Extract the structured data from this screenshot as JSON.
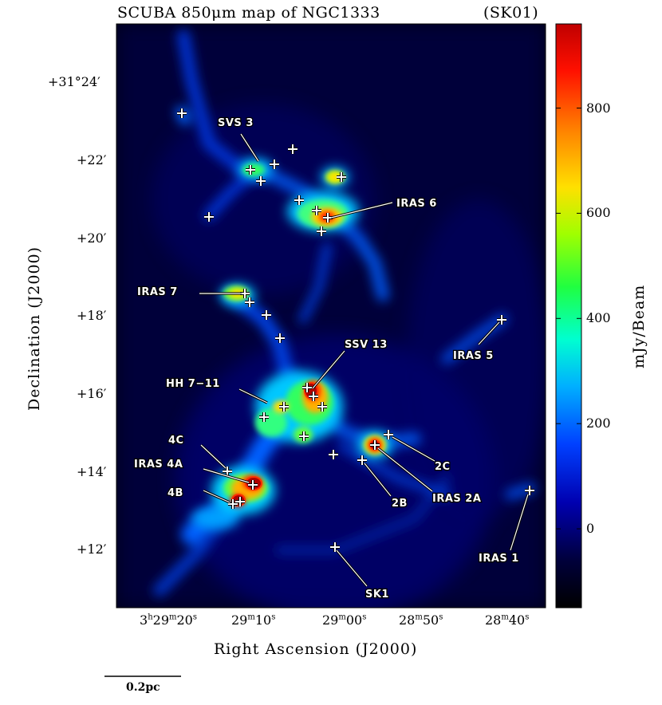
{
  "chart_data": {
    "type": "heatmap",
    "title": "SCUBA 850μm map of NGC1333",
    "title_tag": "(SK01)",
    "xlabel": "Right Ascension (J2000)",
    "ylabel": "Declination (J2000)",
    "x_ticks": [
      {
        "ra": "3h29m20s",
        "label_parts": [
          "3",
          "h",
          "29",
          "m",
          "20",
          "s"
        ]
      },
      {
        "ra": "3h29m10s",
        "label_parts": [
          "",
          "",
          "29",
          "m",
          "10",
          "s"
        ]
      },
      {
        "ra": "3h29m00s",
        "label_parts": [
          "",
          "",
          "29",
          "m",
          "00",
          "s"
        ]
      },
      {
        "ra": "3h28m50s",
        "label_parts": [
          "",
          "",
          "28",
          "m",
          "50",
          "s"
        ]
      },
      {
        "ra": "3h28m40s",
        "label_parts": [
          "",
          "",
          "28",
          "m",
          "40",
          "s"
        ]
      }
    ],
    "y_ticks": [
      {
        "dec_arcmin": 24,
        "label": "+31°24′"
      },
      {
        "dec_arcmin": 22,
        "label": "+22′"
      },
      {
        "dec_arcmin": 20,
        "label": "+20′"
      },
      {
        "dec_arcmin": 18,
        "label": "+18′"
      },
      {
        "dec_arcmin": 16,
        "label": "+16′"
      },
      {
        "dec_arcmin": 14,
        "label": "+14′"
      },
      {
        "dec_arcmin": 12,
        "label": "+12′"
      }
    ],
    "colorbar": {
      "label": "mJy/Beam",
      "min": -150,
      "max": 960,
      "ticks": [
        0,
        200,
        400,
        600,
        800
      ],
      "tick_labels": [
        "0",
        "200",
        "400",
        "600",
        "800"
      ],
      "colormap": [
        "#000000",
        "#00004a",
        "#0000c8",
        "#0060ff",
        "#00d0ff",
        "#00ffa0",
        "#30ff00",
        "#d0ff00",
        "#ffd000",
        "#ff6000",
        "#ff0000",
        "#c80000"
      ]
    },
    "sources": [
      {
        "name": "SVS 3",
        "ra_s": 8.2,
        "dec_arcmin": 21.7,
        "peak": 600
      },
      {
        "name": "IRAS 6",
        "ra_s": 1.5,
        "dec_arcmin": 20.5,
        "peak": 900
      },
      {
        "name": "IRAS 7",
        "ra_s": 10.5,
        "dec_arcmin": 18.5,
        "peak": 650
      },
      {
        "name": "SSV 13",
        "ra_s": 2.5,
        "dec_arcmin": 15.9,
        "peak": 950
      },
      {
        "name": "HH 7−11",
        "ra_s": 5.5,
        "dec_arcmin": 15.6,
        "peak": 650
      },
      {
        "name": "4C",
        "ra_s": 12.0,
        "dec_arcmin": 13.9,
        "peak": 400
      },
      {
        "name": "IRAS 4A",
        "ra_s": 9.2,
        "dec_arcmin": 13.5,
        "peak": 950
      },
      {
        "name": "4B",
        "ra_s": 10.5,
        "dec_arcmin": 13.0,
        "peak": 950
      },
      {
        "name": "2C",
        "ra_s": 53.0,
        "dec_arcmin": 14.8,
        "peak": 400,
        "ra_base": "28m"
      },
      {
        "name": "IRAS 2A",
        "ra_s": 55.0,
        "dec_arcmin": 14.5,
        "peak": 950,
        "ra_base": "28m"
      },
      {
        "name": "2B",
        "ra_s": 57.0,
        "dec_arcmin": 14.2,
        "peak": 350,
        "ra_base": "28m"
      },
      {
        "name": "IRAS 5",
        "ra_s": 36.5,
        "dec_arcmin": 17.9,
        "peak": 250,
        "ra_base": "28m"
      },
      {
        "name": "IRAS 1",
        "ra_s": 33.5,
        "dec_arcmin": 13.3,
        "peak": 250,
        "ra_base": "28m"
      },
      {
        "name": "SK1",
        "ra_s": 59.0,
        "dec_arcmin": 12.0,
        "peak": 150,
        "ra_base": "28m"
      }
    ],
    "scalebar_label": "0.2pc",
    "grid": false
  }
}
